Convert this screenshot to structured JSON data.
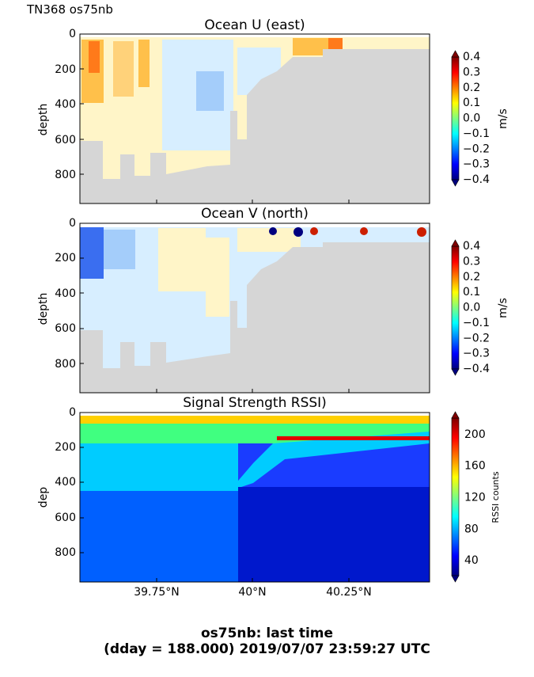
{
  "page": {
    "corner_label": "TN368 os75nb",
    "footer_line1": "os75nb: last time",
    "footer_line2": "(dday = 188.000) 2019/07/07 23:59:27 UTC"
  },
  "colors": {
    "land": "#d6d6d6",
    "background": "#ffffff",
    "frame": "#000000"
  },
  "chart_data": [
    {
      "type": "heatmap",
      "title": "Ocean U (east)",
      "ylabel": "depth",
      "ylim": [
        960,
        0
      ],
      "yticks": [
        "0",
        "200",
        "400",
        "600",
        "800"
      ],
      "xticks": [],
      "colorbar": {
        "label": "m/s",
        "ticks": [
          "0.4",
          "0.3",
          "0.2",
          "0.1",
          "0.0",
          "−0.1",
          "−0.2",
          "−0.3",
          "−0.4"
        ],
        "range": [
          -0.4,
          0.4
        ],
        "colormap": "jet"
      },
      "variable": "eastward velocity",
      "shallow_region_u": "mostly 0.0 to 0.1 m/s with 0.2-0.3 m/s cores near the western (left) edge; -0.1 m/s patches between 39.8N and 39.95N",
      "bottom_mask": "grey"
    },
    {
      "type": "heatmap",
      "title": "Ocean V (north)",
      "ylabel": "depth",
      "ylim": [
        960,
        0
      ],
      "yticks": [
        "0",
        "200",
        "400",
        "600",
        "800"
      ],
      "xticks": [],
      "colorbar": {
        "label": "m/s",
        "ticks": [
          "0.4",
          "0.3",
          "0.2",
          "0.1",
          "0.0",
          "−0.1",
          "−0.2",
          "−0.3",
          "−0.4"
        ],
        "range": [
          -0.4,
          0.4
        ],
        "colormap": "jet"
      },
      "variable": "northward velocity",
      "bottom_mask": "grey"
    },
    {
      "type": "heatmap",
      "title": "Signal Strength RSSI)",
      "ylabel": "dep",
      "ylim": [
        960,
        0
      ],
      "yticks": [
        "0",
        "200",
        "400",
        "600",
        "800"
      ],
      "xticks": [
        "39.75°N",
        "40°N",
        "40.25°N"
      ],
      "colorbar": {
        "label": "RSSI counts",
        "ticks": [
          "200",
          "160",
          "120",
          "80",
          "40"
        ],
        "range": [
          20,
          220
        ],
        "colormap": "jet"
      },
      "variable": "RSSI"
    }
  ]
}
